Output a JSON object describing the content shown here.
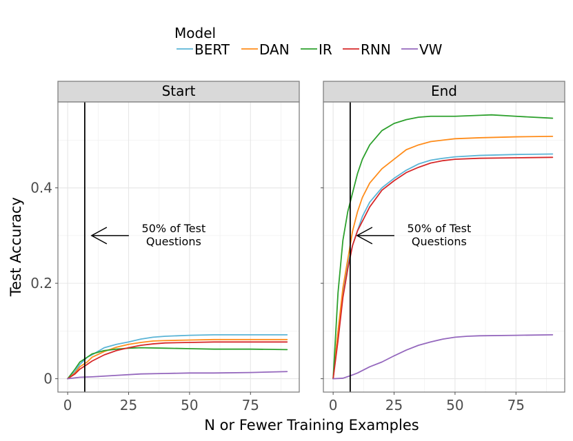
{
  "chart_data": {
    "type": "line",
    "xlabel": "N or Fewer Training Examples",
    "ylabel": "Test Accuracy",
    "xlim": [
      -4,
      95
    ],
    "ylim": [
      -0.028,
      0.58
    ],
    "x_ticks": [
      0,
      25,
      50,
      75
    ],
    "x_tick_labels": [
      "0",
      "25",
      "50",
      "75"
    ],
    "y_ticks": [
      0,
      0.2,
      0.4
    ],
    "y_tick_labels": [
      "0",
      "0.2",
      "0.4"
    ],
    "grid": true,
    "legend": {
      "title": "Model",
      "position": "top",
      "entries": [
        "BERT",
        "DAN",
        "IR",
        "RNN",
        "VW"
      ]
    },
    "series_colors": {
      "BERT": "#5ab4d6",
      "DAN": "#ff8c1a",
      "IR": "#2ca02c",
      "RNN": "#d62728",
      "VW": "#9467bd"
    },
    "vline_x": 7,
    "panels": [
      {
        "title": "Start",
        "annotation": {
          "line1": "50% of Test",
          "line2": "Questions",
          "arrow_to_y": 0.3
        },
        "series": [
          {
            "name": "BERT",
            "points": [
              [
                0,
                0
              ],
              [
                3,
                0.015
              ],
              [
                5,
                0.03
              ],
              [
                8,
                0.045
              ],
              [
                10,
                0.05
              ],
              [
                15,
                0.065
              ],
              [
                20,
                0.072
              ],
              [
                25,
                0.077
              ],
              [
                30,
                0.083
              ],
              [
                35,
                0.087
              ],
              [
                40,
                0.089
              ],
              [
                50,
                0.091
              ],
              [
                60,
                0.092
              ],
              [
                75,
                0.092
              ],
              [
                90,
                0.092
              ]
            ]
          },
          {
            "name": "DAN",
            "points": [
              [
                0,
                0
              ],
              [
                3,
                0.012
              ],
              [
                5,
                0.025
              ],
              [
                8,
                0.035
              ],
              [
                10,
                0.045
              ],
              [
                15,
                0.057
              ],
              [
                20,
                0.066
              ],
              [
                25,
                0.072
              ],
              [
                30,
                0.076
              ],
              [
                35,
                0.079
              ],
              [
                40,
                0.08
              ],
              [
                50,
                0.081
              ],
              [
                60,
                0.082
              ],
              [
                75,
                0.082
              ],
              [
                90,
                0.082
              ]
            ]
          },
          {
            "name": "IR",
            "points": [
              [
                0,
                0
              ],
              [
                3,
                0.02
              ],
              [
                5,
                0.035
              ],
              [
                8,
                0.045
              ],
              [
                10,
                0.052
              ],
              [
                15,
                0.059
              ],
              [
                20,
                0.062
              ],
              [
                25,
                0.064
              ],
              [
                30,
                0.065
              ],
              [
                40,
                0.064
              ],
              [
                50,
                0.063
              ],
              [
                60,
                0.062
              ],
              [
                75,
                0.062
              ],
              [
                90,
                0.061
              ]
            ]
          },
          {
            "name": "RNN",
            "points": [
              [
                0,
                0
              ],
              [
                3,
                0.01
              ],
              [
                5,
                0.02
              ],
              [
                8,
                0.03
              ],
              [
                10,
                0.037
              ],
              [
                15,
                0.05
              ],
              [
                20,
                0.059
              ],
              [
                25,
                0.065
              ],
              [
                30,
                0.07
              ],
              [
                35,
                0.073
              ],
              [
                40,
                0.075
              ],
              [
                50,
                0.076
              ],
              [
                60,
                0.077
              ],
              [
                75,
                0.077
              ],
              [
                90,
                0.077
              ]
            ]
          },
          {
            "name": "VW",
            "points": [
              [
                0,
                0
              ],
              [
                5,
                0.003
              ],
              [
                10,
                0.004
              ],
              [
                20,
                0.007
              ],
              [
                30,
                0.01
              ],
              [
                40,
                0.011
              ],
              [
                50,
                0.012
              ],
              [
                60,
                0.012
              ],
              [
                75,
                0.013
              ],
              [
                90,
                0.015
              ]
            ]
          }
        ]
      },
      {
        "title": "End",
        "annotation": {
          "line1": "50% of Test",
          "line2": "Questions",
          "arrow_to_y": 0.3
        },
        "series": [
          {
            "name": "BERT",
            "points": [
              [
                0,
                0
              ],
              [
                2,
                0.1
              ],
              [
                4,
                0.18
              ],
              [
                6,
                0.24
              ],
              [
                8,
                0.28
              ],
              [
                10,
                0.31
              ],
              [
                12,
                0.34
              ],
              [
                15,
                0.37
              ],
              [
                20,
                0.4
              ],
              [
                25,
                0.42
              ],
              [
                30,
                0.437
              ],
              [
                35,
                0.45
              ],
              [
                40,
                0.458
              ],
              [
                45,
                0.462
              ],
              [
                50,
                0.465
              ],
              [
                60,
                0.468
              ],
              [
                75,
                0.47
              ],
              [
                90,
                0.471
              ]
            ]
          },
          {
            "name": "DAN",
            "points": [
              [
                0,
                0
              ],
              [
                2,
                0.1
              ],
              [
                4,
                0.19
              ],
              [
                6,
                0.25
              ],
              [
                8,
                0.31
              ],
              [
                10,
                0.35
              ],
              [
                12,
                0.38
              ],
              [
                15,
                0.41
              ],
              [
                20,
                0.44
              ],
              [
                25,
                0.46
              ],
              [
                30,
                0.48
              ],
              [
                35,
                0.49
              ],
              [
                40,
                0.497
              ],
              [
                45,
                0.5
              ],
              [
                50,
                0.503
              ],
              [
                60,
                0.505
              ],
              [
                75,
                0.507
              ],
              [
                90,
                0.508
              ]
            ]
          },
          {
            "name": "IR",
            "points": [
              [
                0,
                0
              ],
              [
                2,
                0.18
              ],
              [
                4,
                0.29
              ],
              [
                6,
                0.35
              ],
              [
                8,
                0.39
              ],
              [
                10,
                0.43
              ],
              [
                12,
                0.46
              ],
              [
                15,
                0.49
              ],
              [
                20,
                0.52
              ],
              [
                25,
                0.535
              ],
              [
                30,
                0.543
              ],
              [
                35,
                0.548
              ],
              [
                40,
                0.55
              ],
              [
                50,
                0.55
              ],
              [
                60,
                0.552
              ],
              [
                65,
                0.553
              ],
              [
                75,
                0.55
              ],
              [
                90,
                0.546
              ]
            ]
          },
          {
            "name": "RNN",
            "points": [
              [
                0,
                0
              ],
              [
                2,
                0.08
              ],
              [
                4,
                0.17
              ],
              [
                6,
                0.23
              ],
              [
                8,
                0.28
              ],
              [
                10,
                0.31
              ],
              [
                12,
                0.33
              ],
              [
                15,
                0.36
              ],
              [
                20,
                0.395
              ],
              [
                25,
                0.415
              ],
              [
                30,
                0.432
              ],
              [
                35,
                0.443
              ],
              [
                40,
                0.452
              ],
              [
                45,
                0.457
              ],
              [
                50,
                0.46
              ],
              [
                60,
                0.462
              ],
              [
                75,
                0.463
              ],
              [
                90,
                0.464
              ]
            ]
          },
          {
            "name": "VW",
            "points": [
              [
                0,
                0
              ],
              [
                4,
                0.001
              ],
              [
                8,
                0.008
              ],
              [
                10,
                0.012
              ],
              [
                15,
                0.025
              ],
              [
                20,
                0.035
              ],
              [
                25,
                0.048
              ],
              [
                30,
                0.06
              ],
              [
                35,
                0.07
              ],
              [
                40,
                0.077
              ],
              [
                45,
                0.083
              ],
              [
                50,
                0.087
              ],
              [
                55,
                0.089
              ],
              [
                60,
                0.09
              ],
              [
                75,
                0.091
              ],
              [
                90,
                0.092
              ]
            ]
          }
        ]
      }
    ]
  }
}
